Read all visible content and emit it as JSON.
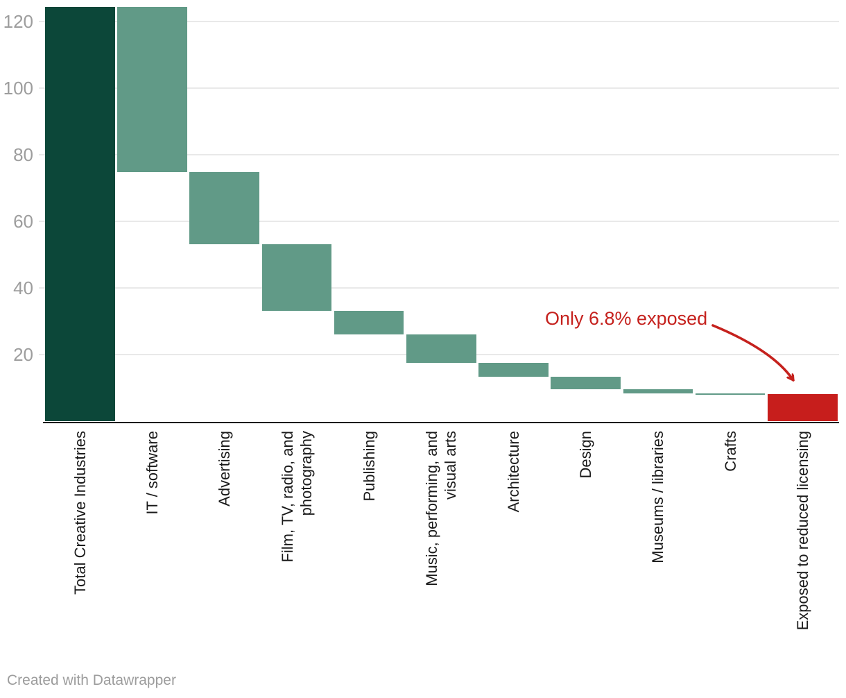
{
  "chart_data": {
    "type": "bar",
    "subtype": "waterfall",
    "title": "",
    "xlabel": "",
    "ylabel": "",
    "ylim": [
      0,
      126
    ],
    "yticks": [
      20,
      40,
      60,
      80,
      100,
      120
    ],
    "grid": true,
    "legend": null,
    "categories": [
      "Total Creative Industries",
      "IT / software",
      "Advertising",
      "Film, TV, radio, and photography",
      "Publishing",
      "Music, performing, and visual arts",
      "Architecture",
      "Design",
      "Museums / libraries",
      "Crafts",
      "Exposed to reduced licensing"
    ],
    "bars": [
      {
        "label": "Total Creative Industries",
        "lines": [
          "Total Creative Industries"
        ],
        "start": 0,
        "end": 124.2,
        "value": 124.2,
        "role": "total"
      },
      {
        "label": "IT / software",
        "lines": [
          "IT / software"
        ],
        "start": 74.8,
        "end": 124.2,
        "value": 49.4,
        "role": "segment"
      },
      {
        "label": "Advertising",
        "lines": [
          "Advertising"
        ],
        "start": 53.1,
        "end": 74.8,
        "value": 21.7,
        "role": "segment"
      },
      {
        "label": "Film, TV, radio, and photography",
        "lines": [
          "Film, TV, radio, and",
          "photography"
        ],
        "start": 33.2,
        "end": 53.1,
        "value": 19.9,
        "role": "segment"
      },
      {
        "label": "Publishing",
        "lines": [
          "Publishing"
        ],
        "start": 26.2,
        "end": 33.2,
        "value": 7.0,
        "role": "segment"
      },
      {
        "label": "Music, performing, and visual arts",
        "lines": [
          "Music, performing, and",
          "visual arts"
        ],
        "start": 17.5,
        "end": 26.2,
        "value": 8.7,
        "role": "segment"
      },
      {
        "label": "Architecture",
        "lines": [
          "Architecture"
        ],
        "start": 13.4,
        "end": 17.5,
        "value": 4.1,
        "role": "segment"
      },
      {
        "label": "Design",
        "lines": [
          "Design"
        ],
        "start": 9.7,
        "end": 13.4,
        "value": 3.7,
        "role": "segment"
      },
      {
        "label": "Museums / libraries",
        "lines": [
          "Museums / libraries"
        ],
        "start": 8.5,
        "end": 9.7,
        "value": 1.2,
        "role": "segment"
      },
      {
        "label": "Crafts",
        "lines": [
          "Crafts"
        ],
        "start": 8.3,
        "end": 8.5,
        "value": 0.2,
        "role": "segment"
      },
      {
        "label": "Exposed to reduced licensing",
        "lines": [
          "Exposed to reduced licensing"
        ],
        "start": 0,
        "end": 8.3,
        "value": 8.3,
        "role": "exposed"
      }
    ],
    "annotation": {
      "text": "Only 6.8% exposed"
    },
    "attribution": "Created with Datawrapper",
    "colors": {
      "total_bar": "#0c4739",
      "segment_bar": "#619a87",
      "exposed_bar": "#c71e1c",
      "annotation": "#c5211d",
      "grid": "#e9e9e9",
      "axis": "#141414",
      "tick_label": "#9d9d9d",
      "category_label": "#1a1a1a",
      "attribution": "#9c9c9c"
    }
  }
}
